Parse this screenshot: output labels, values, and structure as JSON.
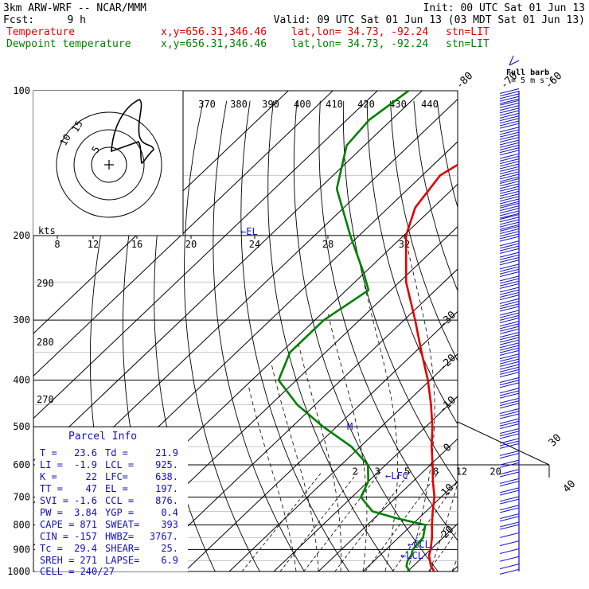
{
  "header": {
    "model": "3km ARW-WRF -- NCAR/MMM",
    "init": "Init: 00 UTC Sat 01 Jun 13",
    "fcst_label": "Fcst:",
    "fcst_value": "9 h",
    "valid": "Valid: 09 UTC Sat 01 Jun 13 (03 MDT Sat 01 Jun 13)",
    "temp_label": "Temperature",
    "dew_label": "Dewpoint temperature",
    "xy": "x,y=656.31,346.46",
    "latlon": "lat,lon= 34.73, -92.24",
    "stn": "stn=LIT",
    "full_barb_line1": "Full barb",
    "full_barb_line2": "= 5 m s⁻¹"
  },
  "colors": {
    "temperature": "#e00000",
    "dewpoint": "#008000",
    "info": "#1010c0",
    "grid": "#000000"
  },
  "chart_data": {
    "type": "line",
    "diagram": "skew-T log-p",
    "pressure_levels": [
      100,
      200,
      300,
      400,
      500,
      600,
      700,
      800,
      900,
      1000
    ],
    "skewed_isotherms": [
      "-80",
      "-70",
      "-60",
      "-50",
      "-40",
      "-30",
      "-20",
      "-10",
      "0",
      "10",
      "20",
      "30",
      "40"
    ],
    "theta_e_labels": [
      "370",
      "380",
      "390",
      "400",
      "410",
      "420",
      "430",
      "440"
    ],
    "theta_left_labels": [
      "290",
      "280",
      "270"
    ],
    "mixing_ratio_labels": [
      "2",
      "3",
      "5",
      "8",
      "12",
      "20"
    ],
    "series": [
      {
        "name": "Temperature",
        "color": "#e00000",
        "points": [
          [
            1000,
            26.0
          ],
          [
            975,
            24.0
          ],
          [
            950,
            22.5
          ],
          [
            925,
            21.0
          ],
          [
            900,
            20.0
          ],
          [
            850,
            17.5
          ],
          [
            800,
            14.5
          ],
          [
            750,
            11.5
          ],
          [
            700,
            8.5
          ],
          [
            650,
            4.5
          ],
          [
            600,
            0.5
          ],
          [
            550,
            -4.0
          ],
          [
            500,
            -8.5
          ],
          [
            450,
            -14.0
          ],
          [
            400,
            -20.5
          ],
          [
            350,
            -28.5
          ],
          [
            300,
            -37.5
          ],
          [
            250,
            -48.5
          ],
          [
            200,
            -59.5
          ],
          [
            175,
            -64.0
          ],
          [
            150,
            -66.0
          ],
          [
            135,
            -63.0
          ],
          [
            120,
            -58.0
          ],
          [
            100,
            -52.0
          ]
        ]
      },
      {
        "name": "Dewpoint temperature",
        "color": "#008000",
        "points": [
          [
            1000,
            20.5
          ],
          [
            975,
            18.5
          ],
          [
            950,
            17.5
          ],
          [
            925,
            17.0
          ],
          [
            900,
            16.0
          ],
          [
            850,
            15.5
          ],
          [
            800,
            13.0
          ],
          [
            775,
            5.0
          ],
          [
            750,
            -2.0
          ],
          [
            700,
            -8.0
          ],
          [
            650,
            -10.0
          ],
          [
            600,
            -14.0
          ],
          [
            550,
            -22.0
          ],
          [
            500,
            -33.0
          ],
          [
            450,
            -44.0
          ],
          [
            400,
            -54.0
          ],
          [
            350,
            -58.0
          ],
          [
            300,
            -58.0
          ],
          [
            260,
            -55.0
          ],
          [
            240,
            -60.0
          ],
          [
            200,
            -72.0
          ],
          [
            160,
            -86.0
          ],
          [
            130,
            -94.0
          ],
          [
            115,
            -95.0
          ],
          [
            100,
            -93.0
          ]
        ]
      }
    ],
    "annotations": {
      "el": "←EL",
      "lfc": "←LFC",
      "ccl": "←CCL",
      "lcl": "←LCL",
      "m": "M"
    },
    "wind_barbs": [
      {
        "p": 104,
        "barbs": 5
      },
      {
        "p": 110,
        "barbs": 5
      },
      {
        "p": 117,
        "barbs": 5
      },
      {
        "p": 125,
        "barbs": 5
      },
      {
        "p": 133,
        "barbs": 5
      },
      {
        "p": 142,
        "barbs": 5
      },
      {
        "p": 151,
        "barbs": 5
      },
      {
        "p": 160,
        "barbs": 5
      },
      {
        "p": 170,
        "barbs": 5
      },
      {
        "p": 180,
        "barbs": 5
      },
      {
        "p": 190,
        "barbs": 5
      },
      {
        "p": 201,
        "barbs": 5
      },
      {
        "p": 213,
        "barbs": 4
      },
      {
        "p": 225,
        "barbs": 4
      },
      {
        "p": 238,
        "barbs": 4
      },
      {
        "p": 252,
        "barbs": 4
      },
      {
        "p": 266,
        "barbs": 4
      },
      {
        "p": 281,
        "barbs": 4
      },
      {
        "p": 297,
        "barbs": 4
      },
      {
        "p": 313,
        "barbs": 4
      },
      {
        "p": 330,
        "barbs": 4
      },
      {
        "p": 347,
        "barbs": 4
      },
      {
        "p": 366,
        "barbs": 4
      },
      {
        "p": 385,
        "barbs": 4
      },
      {
        "p": 405,
        "barbs": 3
      },
      {
        "p": 426,
        "barbs": 3
      },
      {
        "p": 447,
        "barbs": 3
      },
      {
        "p": 470,
        "barbs": 3
      },
      {
        "p": 493,
        "barbs": 3
      },
      {
        "p": 517,
        "barbs": 3
      },
      {
        "p": 542,
        "barbs": 3
      },
      {
        "p": 568,
        "barbs": 2
      },
      {
        "p": 594,
        "barbs": 2
      },
      {
        "p": 621,
        "barbs": 2
      },
      {
        "p": 649,
        "barbs": 2
      },
      {
        "p": 678,
        "barbs": 2
      },
      {
        "p": 707,
        "barbs": 2
      },
      {
        "p": 737,
        "barbs": 2
      },
      {
        "p": 768,
        "barbs": 2
      },
      {
        "p": 799,
        "barbs": 2
      },
      {
        "p": 831,
        "barbs": 1
      },
      {
        "p": 864,
        "barbs": 1
      },
      {
        "p": 897,
        "barbs": 1
      },
      {
        "p": 931,
        "barbs": 1
      },
      {
        "p": 965,
        "barbs": 1
      },
      {
        "p": 990,
        "barbs": 1
      }
    ]
  },
  "hodograph": {
    "kts_label": "kts",
    "speed_ticks": [
      "8",
      "12",
      "16",
      "20",
      "24",
      "28",
      "32"
    ],
    "ring_labels": [
      "5",
      "10",
      "15"
    ]
  },
  "parcel_info": {
    "title": "Parcel Info",
    "rows": [
      [
        "T  =",
        "23.6",
        "Td =",
        "21.9"
      ],
      [
        "LI =",
        "-1.9",
        "LCL =",
        "925."
      ],
      [
        "K  =",
        "22",
        "LFC=",
        "638."
      ],
      [
        "TT =",
        "47",
        "EL =",
        "197."
      ],
      [
        "SVI =",
        "-1.6",
        "CCL =",
        "876."
      ],
      [
        "PW =",
        "3.84",
        "YGP =",
        "0.4"
      ],
      [
        "CAPE =",
        "871",
        "SWEAT=",
        "393"
      ],
      [
        "CIN =",
        "-157",
        "HWBZ=",
        "3767."
      ],
      [
        "Tc =",
        "29.4",
        "SHEAR=",
        "25."
      ],
      [
        "SREH =",
        "271",
        "LAPSE=",
        "6.9"
      ]
    ],
    "cell": "CELL = 240/27"
  }
}
